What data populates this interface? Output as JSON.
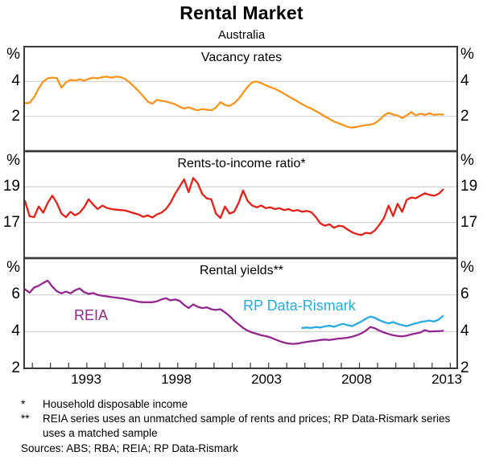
{
  "header": {
    "title": "Rental Market",
    "subtitle": "Australia"
  },
  "x_axis": {
    "labels": [
      "1993",
      "1998",
      "2003",
      "2008",
      "2013"
    ],
    "range_years": [
      1989.55,
      2013.38
    ],
    "minor_tick_interval_years": 1,
    "minor_tick_start": 1990,
    "minor_tick_end": 2013
  },
  "panels": [
    {
      "title": "Vacancy rates",
      "unit_left": "%",
      "unit_right": "%",
      "left_labels": [
        "4",
        "2"
      ],
      "right_labels": [
        "4",
        "2"
      ]
    },
    {
      "title": "Rents-to-income ratio*",
      "unit_left": "%",
      "unit_right": "%",
      "left_labels": [
        "19",
        "17"
      ],
      "right_labels": [
        "19",
        "17"
      ]
    },
    {
      "title": "Rental yields**",
      "unit_left": "%",
      "unit_right": "%",
      "left_labels": [
        "6",
        "4"
      ],
      "right_labels": [
        "6",
        "4"
      ],
      "bottom_left_label": "2",
      "bottom_right_label": "2",
      "series_labels": [
        {
          "text": "REIA",
          "color": "#93278F"
        },
        {
          "text": "RP Data-Rismark",
          "color": "#29ABE2"
        }
      ]
    }
  ],
  "footnotes": [
    {
      "marker": "*",
      "text": "Household disposable income"
    },
    {
      "marker": "**",
      "text": "REIA series uses an unmatched sample of rents and prices; RP Data-Rismark series uses a matched sample"
    }
  ],
  "sources": "Sources: ABS; RBA; REIA; RP Data-Rismark",
  "chart_data": [
    {
      "type": "line",
      "title": "Vacancy rates",
      "unit": "%",
      "ylim": [
        0,
        6
      ],
      "gridlines": [
        2,
        4
      ],
      "grid": true,
      "series": [
        {
          "name": "Vacancy rates",
          "color": "#F7941D",
          "x_start": 1989.6,
          "x_step": 0.25,
          "values": [
            2.75,
            2.78,
            3.1,
            3.6,
            4.0,
            4.18,
            4.22,
            4.2,
            3.65,
            3.95,
            4.1,
            4.05,
            4.12,
            4.05,
            4.15,
            4.22,
            4.18,
            4.25,
            4.28,
            4.22,
            4.28,
            4.25,
            4.15,
            3.95,
            3.7,
            3.45,
            3.15,
            2.85,
            2.72,
            2.95,
            2.9,
            2.85,
            2.78,
            2.7,
            2.55,
            2.45,
            2.52,
            2.42,
            2.35,
            2.42,
            2.38,
            2.35,
            2.5,
            2.82,
            2.65,
            2.6,
            2.75,
            3.0,
            3.35,
            3.7,
            3.95,
            4.0,
            3.9,
            3.78,
            3.68,
            3.58,
            3.45,
            3.3,
            3.15,
            3.0,
            2.85,
            2.7,
            2.55,
            2.45,
            2.3,
            2.15,
            2.0,
            1.85,
            1.7,
            1.6,
            1.5,
            1.4,
            1.35,
            1.4,
            1.45,
            1.5,
            1.52,
            1.6,
            1.8,
            2.05,
            2.2,
            2.1,
            2.05,
            1.9,
            2.05,
            2.25,
            2.05,
            2.15,
            2.08,
            2.18,
            2.08,
            2.12,
            2.1
          ]
        }
      ]
    },
    {
      "type": "line",
      "title": "Rents-to-income ratio*",
      "unit": "%",
      "ylim": [
        15,
        21
      ],
      "gridlines": [
        17,
        19
      ],
      "grid": true,
      "series": [
        {
          "name": "Rents-to-income ratio",
          "color": "#E32119",
          "x_start": 1989.6,
          "x_step": 0.25,
          "values": [
            18.2,
            17.35,
            17.3,
            17.9,
            17.55,
            18.1,
            18.5,
            18.1,
            17.5,
            17.3,
            17.6,
            17.4,
            17.55,
            17.85,
            18.3,
            18.0,
            17.75,
            17.95,
            17.82,
            17.75,
            17.72,
            17.7,
            17.68,
            17.6,
            17.52,
            17.45,
            17.32,
            17.4,
            17.28,
            17.45,
            17.55,
            17.75,
            18.1,
            18.6,
            19.0,
            19.42,
            18.7,
            19.5,
            19.2,
            18.6,
            18.35,
            18.3,
            17.5,
            17.25,
            17.9,
            17.5,
            17.6,
            18.1,
            18.8,
            18.2,
            17.95,
            17.85,
            17.95,
            17.8,
            17.85,
            17.75,
            17.8,
            17.7,
            17.75,
            17.65,
            17.7,
            17.6,
            17.65,
            17.58,
            17.3,
            16.95,
            16.82,
            16.9,
            16.7,
            16.82,
            16.78,
            16.6,
            16.45,
            16.35,
            16.3,
            16.42,
            16.38,
            16.55,
            16.88,
            17.25,
            17.95,
            17.36,
            18.05,
            17.6,
            18.27,
            18.4,
            18.36,
            18.5,
            18.64,
            18.55,
            18.5,
            18.6,
            18.85
          ]
        }
      ]
    },
    {
      "type": "line",
      "title": "Rental yields**",
      "unit": "%",
      "ylim": [
        2,
        8
      ],
      "gridlines": [
        4,
        6
      ],
      "grid": true,
      "series": [
        {
          "name": "REIA",
          "color": "#93278F",
          "x_start": 1989.6,
          "x_step": 0.25,
          "values": [
            6.3,
            6.12,
            6.4,
            6.5,
            6.65,
            6.78,
            6.45,
            6.2,
            6.08,
            6.18,
            6.08,
            6.25,
            6.35,
            6.15,
            6.05,
            6.1,
            6.0,
            5.95,
            5.92,
            5.88,
            5.85,
            5.82,
            5.78,
            5.73,
            5.68,
            5.62,
            5.6,
            5.6,
            5.6,
            5.65,
            5.75,
            5.82,
            5.7,
            5.75,
            5.68,
            5.45,
            5.28,
            5.48,
            5.35,
            5.28,
            5.32,
            5.22,
            5.18,
            5.22,
            5.05,
            4.85,
            4.6,
            4.4,
            4.2,
            4.05,
            3.95,
            3.88,
            3.8,
            3.75,
            3.68,
            3.58,
            3.48,
            3.4,
            3.35,
            3.33,
            3.35,
            3.4,
            3.44,
            3.48,
            3.5,
            3.54,
            3.57,
            3.54,
            3.58,
            3.62,
            3.64,
            3.67,
            3.72,
            3.8,
            3.9,
            4.05,
            4.25,
            4.18,
            4.05,
            3.95,
            3.87,
            3.8,
            3.76,
            3.74,
            3.78,
            3.85,
            3.9,
            3.95,
            4.08,
            4.0,
            4.02,
            4.02,
            4.04
          ]
        },
        {
          "name": "RP Data-Rismark",
          "color": "#29ABE2",
          "x_start": 2004.85,
          "x_step": 0.25,
          "values": [
            4.2,
            4.22,
            4.2,
            4.25,
            4.22,
            4.28,
            4.32,
            4.26,
            4.35,
            4.42,
            4.35,
            4.3,
            4.42,
            4.55,
            4.7,
            4.82,
            4.75,
            4.62,
            4.52,
            4.45,
            4.52,
            4.42,
            4.35,
            4.3,
            4.38,
            4.45,
            4.52,
            4.56,
            4.6,
            4.55,
            4.65,
            4.85
          ]
        }
      ]
    }
  ]
}
